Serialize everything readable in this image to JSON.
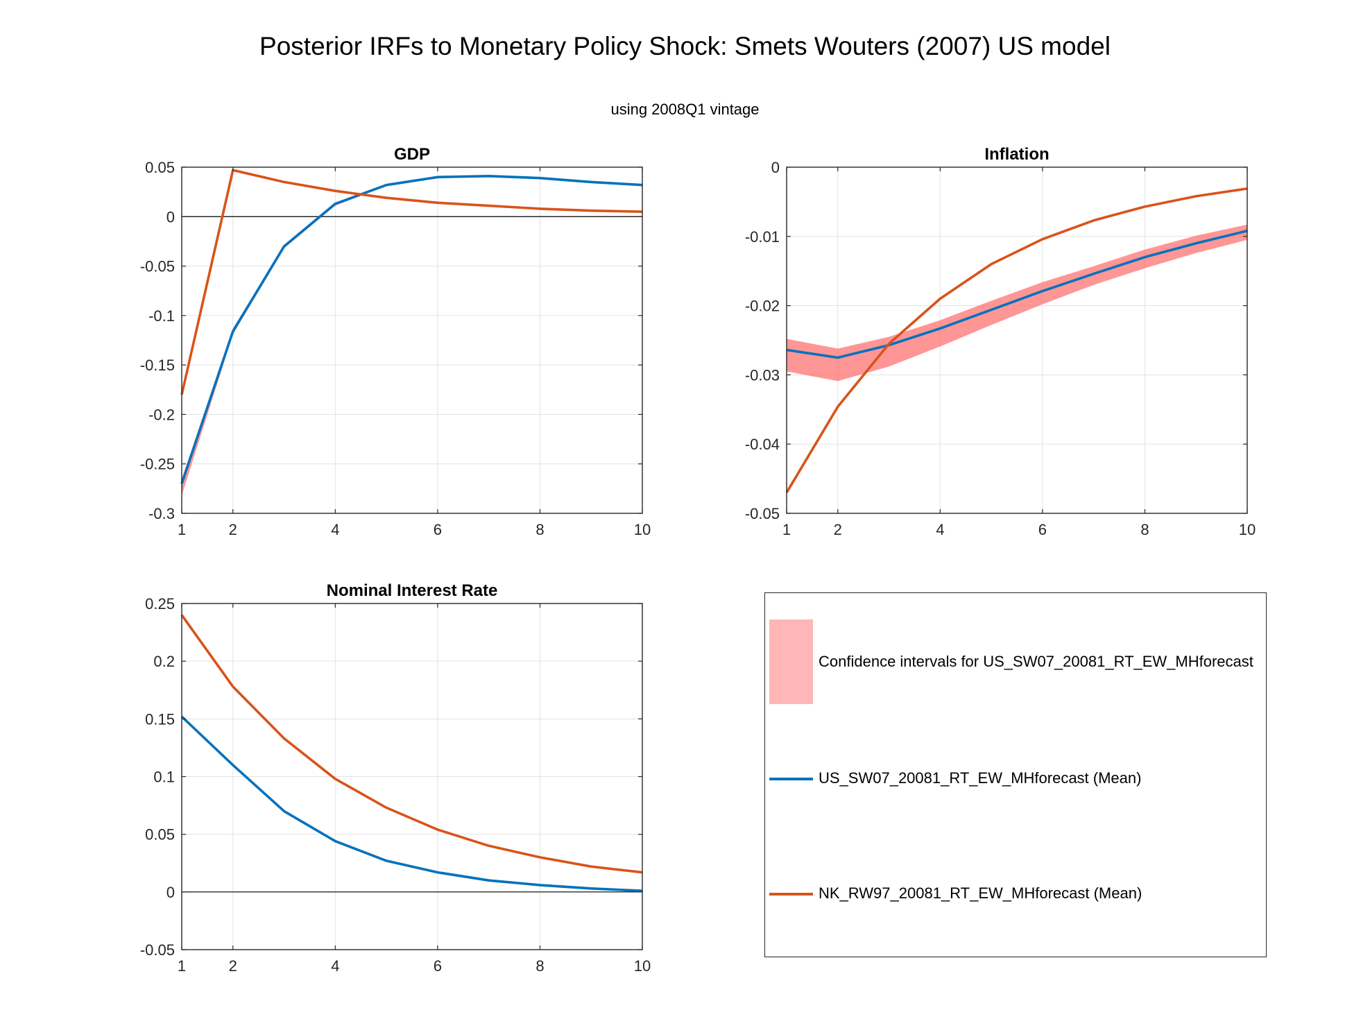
{
  "figure": {
    "title": "Posterior IRFs to Monetary Policy Shock: Smets Wouters (2007) US model",
    "subtitle": "using 2008Q1 vintage"
  },
  "colors": {
    "blue": "#0072BD",
    "orange": "#D95319",
    "band": "#FF6A6A",
    "band_legend": "#FFB6B6"
  },
  "legend": {
    "band_label": "Confidence intervals for US_SW07_20081_RT_EW_MHforecast",
    "blue_label": "US_SW07_20081_RT_EW_MHforecast (Mean)",
    "orange_label": "NK_RW97_20081_RT_EW_MHforecast (Mean)"
  },
  "chart_data": [
    {
      "type": "line",
      "title": "GDP",
      "x": [
        1,
        2,
        3,
        4,
        5,
        6,
        7,
        8,
        9,
        10
      ],
      "xticks": [
        "1",
        "2",
        "4",
        "6",
        "8",
        "10"
      ],
      "xtick_values": [
        1,
        2,
        4,
        6,
        8,
        10
      ],
      "xlim": [
        1,
        10
      ],
      "ylim": [
        -0.3,
        0.05
      ],
      "yticks": [
        "0.05",
        "0",
        "-0.05",
        "-0.1",
        "-0.15",
        "-0.2",
        "-0.25",
        "-0.3"
      ],
      "ytick_values": [
        0.05,
        0,
        -0.05,
        -0.1,
        -0.15,
        -0.2,
        -0.25,
        -0.3
      ],
      "grid": true,
      "zero_line": true,
      "series": [
        {
          "name": "US_SW07_20081_RT_EW_MHforecast (Mean)",
          "color": "blue",
          "values": [
            -0.27,
            -0.116,
            -0.03,
            0.013,
            0.032,
            0.04,
            0.041,
            0.039,
            0.035,
            0.032
          ],
          "band_lower": [
            -0.282,
            -0.119,
            -0.032,
            0.011,
            0.031,
            0.039,
            0.04,
            0.038,
            0.034,
            0.031
          ],
          "band_upper": [
            -0.265,
            -0.113,
            -0.029,
            0.014,
            0.033,
            0.041,
            0.042,
            0.04,
            0.036,
            0.033
          ]
        },
        {
          "name": "NK_RW97_20081_RT_EW_MHforecast (Mean)",
          "color": "orange",
          "values": [
            -0.18,
            0.047,
            0.035,
            0.026,
            0.019,
            0.014,
            0.011,
            0.008,
            0.006,
            0.005
          ]
        }
      ]
    },
    {
      "type": "line",
      "title": "Inflation",
      "x": [
        1,
        2,
        3,
        4,
        5,
        6,
        7,
        8,
        9,
        10
      ],
      "xticks": [
        "1",
        "2",
        "4",
        "6",
        "8",
        "10"
      ],
      "xtick_values": [
        1,
        2,
        4,
        6,
        8,
        10
      ],
      "xlim": [
        1,
        10
      ],
      "ylim": [
        -0.05,
        0
      ],
      "yticks": [
        "0",
        "-0.01",
        "-0.02",
        "-0.03",
        "-0.04",
        "-0.05"
      ],
      "ytick_values": [
        0,
        -0.01,
        -0.02,
        -0.03,
        -0.04,
        -0.05
      ],
      "grid": true,
      "zero_line": false,
      "series": [
        {
          "name": "US_SW07_20081_RT_EW_MHforecast (Mean)",
          "color": "blue",
          "values": [
            -0.0264,
            -0.0275,
            -0.0257,
            -0.0233,
            -0.0206,
            -0.0179,
            -0.0154,
            -0.013,
            -0.011,
            -0.0092
          ],
          "band_lower": [
            -0.0295,
            -0.0309,
            -0.0288,
            -0.0259,
            -0.0228,
            -0.0198,
            -0.017,
            -0.0146,
            -0.0124,
            -0.0105
          ],
          "band_upper": [
            -0.0248,
            -0.0262,
            -0.0245,
            -0.0221,
            -0.0193,
            -0.0166,
            -0.0143,
            -0.0119,
            -0.0099,
            -0.0083
          ]
        },
        {
          "name": "NK_RW97_20081_RT_EW_MHforecast (Mean)",
          "color": "orange",
          "values": [
            -0.047,
            -0.0346,
            -0.0255,
            -0.019,
            -0.014,
            -0.0104,
            -0.0077,
            -0.0057,
            -0.0042,
            -0.0031
          ]
        }
      ]
    },
    {
      "type": "line",
      "title": "Nominal Interest Rate",
      "x": [
        1,
        2,
        3,
        4,
        5,
        6,
        7,
        8,
        9,
        10
      ],
      "xticks": [
        "1",
        "2",
        "4",
        "6",
        "8",
        "10"
      ],
      "xtick_values": [
        1,
        2,
        4,
        6,
        8,
        10
      ],
      "xlim": [
        1,
        10
      ],
      "ylim": [
        -0.05,
        0.25
      ],
      "yticks": [
        "0.25",
        "0.2",
        "0.15",
        "0.1",
        "0.05",
        "0",
        "-0.05"
      ],
      "ytick_values": [
        0.25,
        0.2,
        0.15,
        0.1,
        0.05,
        0,
        -0.05
      ],
      "grid": true,
      "zero_line": true,
      "series": [
        {
          "name": "US_SW07_20081_RT_EW_MHforecast (Mean)",
          "color": "blue",
          "values": [
            0.152,
            0.11,
            0.07,
            0.044,
            0.027,
            0.017,
            0.01,
            0.006,
            0.003,
            0.001
          ],
          "band_lower": [
            0.151,
            0.109,
            0.069,
            0.043,
            0.026,
            0.016,
            0.009,
            0.005,
            0.002,
            0.0
          ],
          "band_upper": [
            0.153,
            0.111,
            0.071,
            0.045,
            0.028,
            0.018,
            0.011,
            0.007,
            0.004,
            0.002
          ]
        },
        {
          "name": "NK_RW97_20081_RT_EW_MHforecast (Mean)",
          "color": "orange",
          "values": [
            0.24,
            0.178,
            0.133,
            0.098,
            0.073,
            0.054,
            0.04,
            0.03,
            0.022,
            0.017
          ]
        }
      ]
    }
  ]
}
